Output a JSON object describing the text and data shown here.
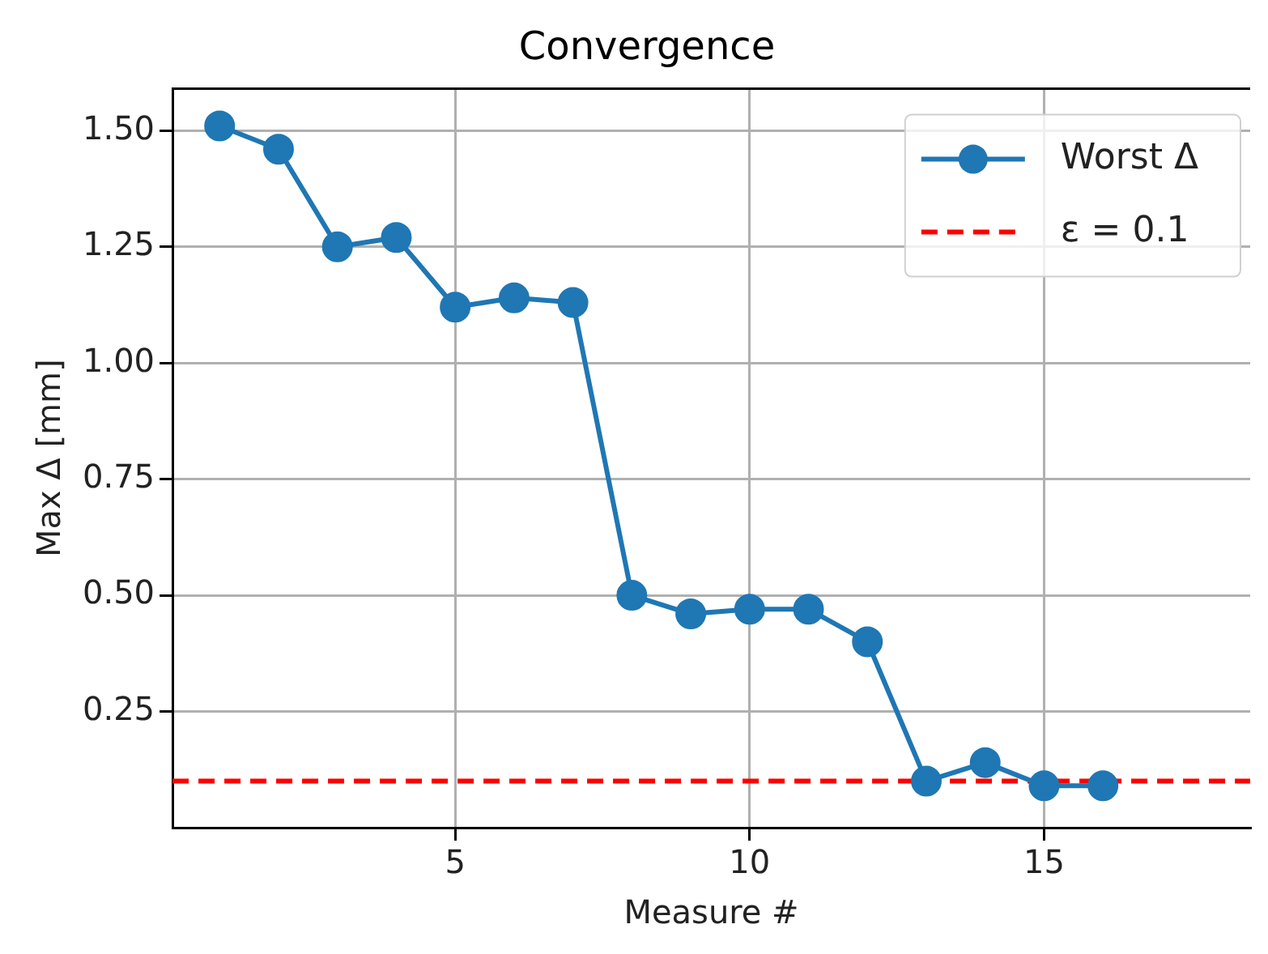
{
  "chart_data": {
    "type": "line",
    "title": "Convergence",
    "xlabel": "Measure #",
    "ylabel": "Max Δ [mm]",
    "x": [
      1,
      2,
      3,
      4,
      5,
      6,
      7,
      8,
      9,
      10,
      11,
      12,
      13,
      14,
      15,
      16
    ],
    "series": [
      {
        "name": "Worst Δ",
        "color": "#1f77b4",
        "values": [
          1.51,
          1.46,
          1.25,
          1.27,
          1.12,
          1.14,
          1.13,
          0.5,
          0.46,
          0.47,
          0.47,
          0.4,
          0.1,
          0.14,
          0.09,
          0.09
        ]
      }
    ],
    "ref_lines": [
      {
        "axis": "y",
        "value": 0.1,
        "label": "ε = 0.1",
        "color": "#ff0000",
        "line_style": "dashed"
      }
    ],
    "xlim": [
      0.2,
      18.5
    ],
    "xticks": [
      5,
      10,
      15
    ],
    "ylim": [
      0.0,
      1.59
    ],
    "yticks": [
      {
        "value": 0.25,
        "label": "0.25"
      },
      {
        "value": 0.5,
        "label": "0.50"
      },
      {
        "value": 0.75,
        "label": "0.75"
      },
      {
        "value": 1.0,
        "label": "1.00"
      },
      {
        "value": 1.25,
        "label": "1.25"
      },
      {
        "value": 1.5,
        "label": "1.50"
      }
    ],
    "grid": true,
    "legend": "top right",
    "marker": "circle",
    "line_style": "solid"
  }
}
